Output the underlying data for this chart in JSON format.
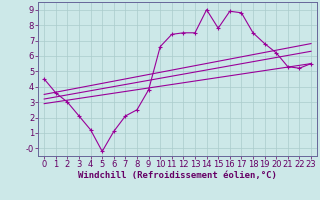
{
  "title": "",
  "xlabel": "Windchill (Refroidissement éolien,°C)",
  "ylabel": "",
  "bg_color": "#cce8e8",
  "line_color": "#990099",
  "grid_color": "#aacccc",
  "xlim": [
    -0.5,
    23.5
  ],
  "ylim": [
    -0.5,
    9.5
  ],
  "xticks": [
    0,
    1,
    2,
    3,
    4,
    5,
    6,
    7,
    8,
    9,
    10,
    11,
    12,
    13,
    14,
    15,
    16,
    17,
    18,
    19,
    20,
    21,
    22,
    23
  ],
  "yticks": [
    0,
    1,
    2,
    3,
    4,
    5,
    6,
    7,
    8,
    9
  ],
  "ytick_labels": [
    "-0",
    "1",
    "2",
    "3",
    "4",
    "5",
    "6",
    "7",
    "8",
    "9"
  ],
  "series": {
    "jagged": {
      "x": [
        0,
        1,
        2,
        3,
        4,
        5,
        6,
        7,
        8,
        9,
        10,
        11,
        12,
        13,
        14,
        15,
        16,
        17,
        18,
        19,
        20,
        21,
        22,
        23
      ],
      "y": [
        4.5,
        3.6,
        3.0,
        2.1,
        1.2,
        -0.2,
        1.1,
        2.1,
        2.5,
        3.8,
        6.6,
        7.4,
        7.5,
        7.5,
        9.0,
        7.8,
        8.9,
        8.8,
        7.5,
        6.8,
        6.2,
        5.3,
        5.2,
        5.5
      ]
    },
    "line1": {
      "x": [
        0,
        23
      ],
      "y": [
        3.5,
        6.8
      ]
    },
    "line2": {
      "x": [
        0,
        23
      ],
      "y": [
        3.2,
        6.3
      ]
    },
    "line3": {
      "x": [
        0,
        23
      ],
      "y": [
        2.9,
        5.5
      ]
    }
  },
  "xlabel_fontsize": 6.5,
  "tick_fontsize": 6.0,
  "xlabel_color": "#660066",
  "tick_color": "#660066",
  "spine_color": "#666699"
}
